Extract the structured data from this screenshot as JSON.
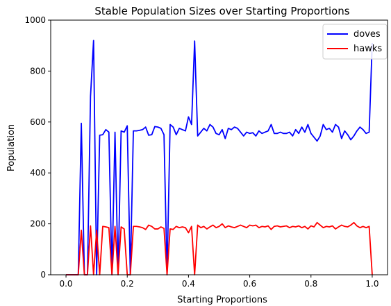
{
  "chart_data": {
    "type": "line",
    "title": "Stable Population Sizes over Starting Proportions",
    "xlabel": "Starting Proportions",
    "ylabel": "Population",
    "xlim": [
      -0.05,
      1.05
    ],
    "ylim": [
      0,
      1000
    ],
    "xticks": [
      0.0,
      0.2,
      0.4,
      0.6,
      0.8,
      1.0
    ],
    "xtick_labels": [
      "0.0",
      "0.2",
      "0.4",
      "0.6",
      "0.8",
      "1.0"
    ],
    "yticks": [
      0,
      200,
      400,
      600,
      800,
      1000
    ],
    "ytick_labels": [
      "0",
      "200",
      "400",
      "600",
      "800",
      "1000"
    ],
    "grid": false,
    "legend_position": "top-right",
    "x": [
      0.0,
      0.01,
      0.02,
      0.03,
      0.04,
      0.05,
      0.06,
      0.07,
      0.08,
      0.09,
      0.1,
      0.11,
      0.12,
      0.13,
      0.14,
      0.15,
      0.16,
      0.17,
      0.18,
      0.19,
      0.2,
      0.21,
      0.22,
      0.23,
      0.24,
      0.25,
      0.26,
      0.27,
      0.28,
      0.29,
      0.3,
      0.31,
      0.32,
      0.33,
      0.34,
      0.35,
      0.36,
      0.37,
      0.38,
      0.39,
      0.4,
      0.41,
      0.42,
      0.43,
      0.44,
      0.45,
      0.46,
      0.47,
      0.48,
      0.49,
      0.5,
      0.51,
      0.52,
      0.53,
      0.54,
      0.55,
      0.56,
      0.57,
      0.58,
      0.59,
      0.6,
      0.61,
      0.62,
      0.63,
      0.64,
      0.65,
      0.66,
      0.67,
      0.68,
      0.69,
      0.7,
      0.71,
      0.72,
      0.73,
      0.74,
      0.75,
      0.76,
      0.77,
      0.78,
      0.79,
      0.8,
      0.81,
      0.82,
      0.83,
      0.84,
      0.85,
      0.86,
      0.87,
      0.88,
      0.89,
      0.9,
      0.91,
      0.92,
      0.93,
      0.94,
      0.95,
      0.96,
      0.97,
      0.98,
      0.99,
      1.0
    ],
    "series": [
      {
        "name": "doves",
        "color": "#0000ff",
        "values": [
          0,
          0,
          0,
          0,
          0,
          595,
          0,
          0,
          700,
          920,
          0,
          548,
          550,
          570,
          560,
          0,
          560,
          0,
          565,
          560,
          585,
          0,
          565,
          565,
          567,
          570,
          580,
          548,
          550,
          582,
          580,
          575,
          550,
          0,
          590,
          580,
          550,
          575,
          570,
          565,
          620,
          590,
          918,
          545,
          560,
          575,
          565,
          590,
          580,
          555,
          550,
          570,
          535,
          575,
          570,
          580,
          575,
          560,
          545,
          560,
          555,
          558,
          545,
          565,
          555,
          560,
          565,
          590,
          555,
          555,
          560,
          555,
          555,
          560,
          545,
          570,
          555,
          580,
          560,
          590,
          555,
          540,
          525,
          545,
          590,
          570,
          575,
          560,
          590,
          580,
          535,
          565,
          550,
          530,
          545,
          565,
          580,
          570,
          555,
          560,
          910
        ]
      },
      {
        "name": "hawks",
        "color": "#ff0000",
        "values": [
          0,
          0,
          0,
          0,
          0,
          175,
          0,
          0,
          192,
          0,
          175,
          0,
          190,
          188,
          185,
          0,
          190,
          0,
          188,
          180,
          0,
          0,
          190,
          190,
          188,
          185,
          178,
          195,
          190,
          180,
          180,
          188,
          182,
          0,
          180,
          178,
          190,
          185,
          188,
          185,
          165,
          190,
          0,
          195,
          185,
          190,
          180,
          188,
          195,
          185,
          190,
          200,
          185,
          192,
          188,
          185,
          190,
          195,
          190,
          185,
          195,
          192,
          195,
          185,
          190,
          188,
          192,
          178,
          190,
          192,
          188,
          190,
          192,
          185,
          190,
          188,
          192,
          185,
          190,
          180,
          192,
          188,
          205,
          195,
          185,
          190,
          188,
          192,
          180,
          188,
          195,
          190,
          188,
          195,
          205,
          192,
          185,
          190,
          185,
          190,
          0
        ]
      }
    ]
  }
}
